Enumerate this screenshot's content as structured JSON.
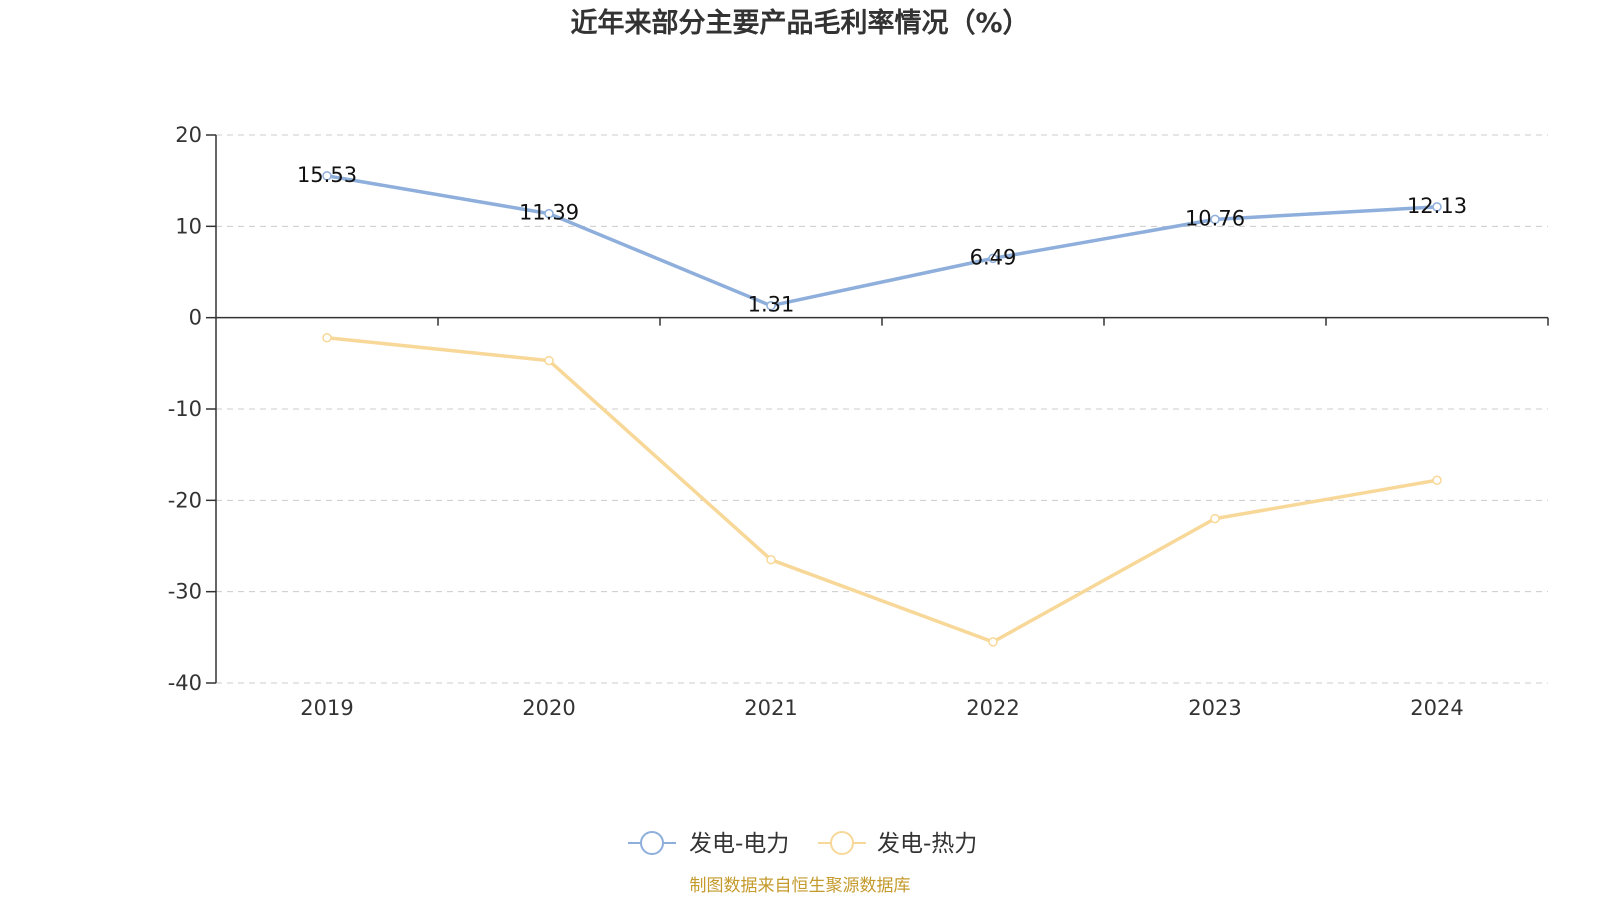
{
  "chart_data": {
    "type": "line",
    "title": "近年来部分主要产品毛利率情况（%）",
    "xlabel": "",
    "ylabel": "",
    "categories": [
      "2019",
      "2020",
      "2021",
      "2022",
      "2023",
      "2024"
    ],
    "ylim": [
      -40,
      20
    ],
    "yticks": [
      20,
      10,
      0,
      -10,
      -20,
      -30,
      -40
    ],
    "grid": true,
    "legend_position": "bottom",
    "series": [
      {
        "name": "发电-电力",
        "values": [
          15.53,
          11.39,
          1.31,
          6.49,
          10.76,
          12.13
        ],
        "labels": [
          "15.53",
          "11.39",
          "1.31",
          "6.49",
          "10.76",
          "12.13"
        ],
        "color": "#8eaedb",
        "show_labels": true
      },
      {
        "name": "发电-热力",
        "values": [
          -2.2,
          -4.7,
          -26.5,
          -35.5,
          -22.0,
          -17.8
        ],
        "color": "#f8d898",
        "show_labels": false
      }
    ],
    "source": "制图数据来自恒生聚源数据库"
  }
}
